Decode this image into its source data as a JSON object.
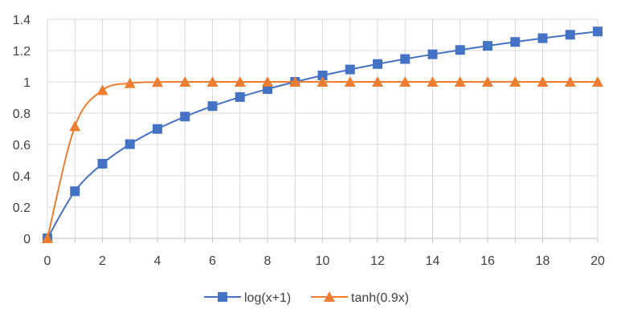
{
  "chart_data": {
    "type": "line",
    "title": "",
    "xlabel": "",
    "ylabel": "",
    "x": [
      0,
      1,
      2,
      3,
      4,
      5,
      6,
      7,
      8,
      9,
      10,
      11,
      12,
      13,
      14,
      15,
      16,
      17,
      18,
      19,
      20
    ],
    "xlim": [
      0,
      20
    ],
    "ylim": [
      0,
      1.4
    ],
    "x_ticks": [
      0,
      2,
      4,
      6,
      8,
      10,
      12,
      14,
      16,
      18,
      20
    ],
    "y_ticks": [
      0,
      0.2,
      0.4,
      0.6,
      0.8,
      1,
      1.2,
      1.4
    ],
    "x_tick_labels": [
      "0",
      "2",
      "4",
      "6",
      "8",
      "10",
      "12",
      "14",
      "16",
      "18",
      "20"
    ],
    "y_tick_labels": [
      "0",
      "0.2",
      "0.4",
      "0.6",
      "0.8",
      "1",
      "1.2",
      "1.4"
    ],
    "grid": true,
    "legend_position": "bottom",
    "series": [
      {
        "name": "log(x+1)",
        "color": "#4472C4",
        "marker": "square",
        "values": [
          0,
          0.301,
          0.477,
          0.602,
          0.699,
          0.778,
          0.845,
          0.903,
          0.954,
          1.0,
          1.041,
          1.079,
          1.114,
          1.146,
          1.176,
          1.204,
          1.23,
          1.255,
          1.279,
          1.301,
          1.322
        ]
      },
      {
        "name": "tanh(0.9x)",
        "color": "#ED7D31",
        "marker": "triangle",
        "values": [
          0,
          0.716,
          0.947,
          0.991,
          0.999,
          1.0,
          1.0,
          1.0,
          1.0,
          1.0,
          1.0,
          1.0,
          1.0,
          1.0,
          1.0,
          1.0,
          1.0,
          1.0,
          1.0,
          1.0,
          1.0
        ]
      }
    ]
  }
}
